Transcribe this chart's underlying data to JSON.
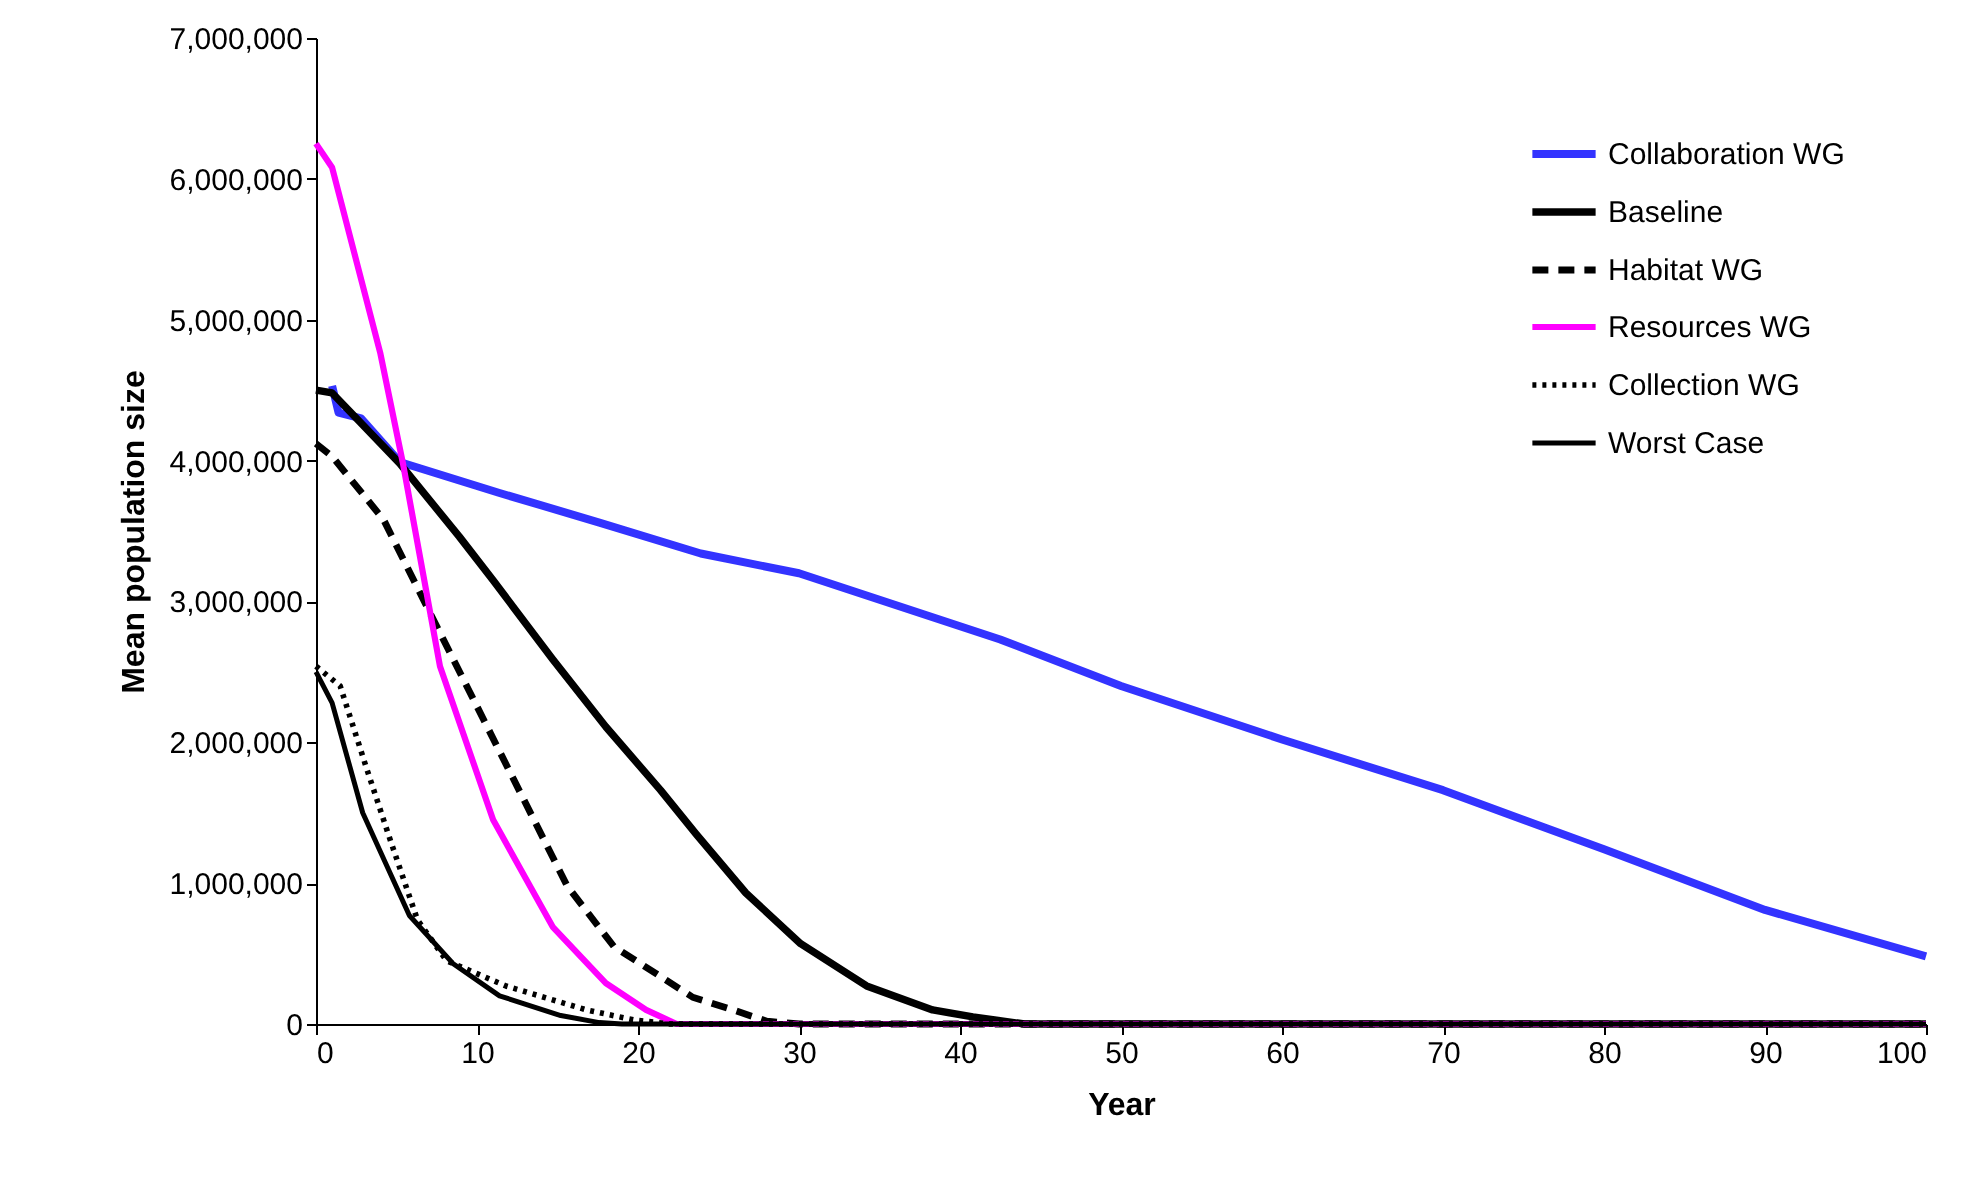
{
  "chart_data": {
    "type": "line",
    "xlabel": "Year",
    "ylabel": "Mean population size",
    "xlim": [
      0,
      100
    ],
    "xticks": [
      0,
      10,
      20,
      30,
      40,
      50,
      60,
      70,
      80,
      90,
      100
    ],
    "ylim": [
      0,
      7000000
    ],
    "yticks": [
      0,
      {
        "value": 1000000,
        "label": "1,000,000"
      },
      {
        "value": 2000000,
        "label": "2,000,000"
      },
      {
        "value": 3000000,
        "label": "3,000,000"
      },
      {
        "value": 4000000,
        "label": "4,000,000"
      },
      {
        "value": 5000000,
        "label": "5,000,000"
      },
      {
        "value": 6000000,
        "label": "6,000,000"
      },
      {
        "value": 7000000,
        "label": "7,000,000"
      }
    ],
    "grid": false,
    "legend": "top right",
    "marker": "none",
    "series": [
      {
        "name": "Collaboration WG",
        "color": "#3333ff",
        "line_style": "solid",
        "x": [
          1,
          1.4,
          2.8,
          5.2,
          11.4,
          17.6,
          23.9,
          30,
          42.5,
          50,
          60,
          70,
          80,
          90,
          100
        ],
        "values": [
          4530000,
          4340000,
          4300000,
          3990000,
          3770000,
          3560000,
          3340000,
          3200000,
          2730000,
          2400000,
          2020000,
          1660000,
          1240000,
          810000,
          480000
        ]
      },
      {
        "name": "Baseline",
        "color": "#000000",
        "line_style": "solid",
        "x": [
          0,
          1,
          5.2,
          8.9,
          11,
          14.7,
          18,
          21.4,
          23.6,
          26.7,
          30.1,
          34.2,
          38.3,
          40.8,
          44,
          100
        ],
        "values": [
          4500000,
          4480000,
          3980000,
          3460000,
          3150000,
          2590000,
          2110000,
          1660000,
          1350000,
          930000,
          570000,
          270000,
          100000,
          50000,
          0,
          0
        ]
      },
      {
        "name": "Habitat WG",
        "color": "#000000",
        "line_style": "dashed",
        "x": [
          0,
          1,
          4.2,
          6.9,
          9.8,
          12.7,
          15.6,
          18.5,
          23.4,
          25.9,
          28,
          30,
          100
        ],
        "values": [
          4120000,
          4030000,
          3580000,
          2960000,
          2300000,
          1640000,
          980000,
          550000,
          190000,
          100000,
          20000,
          0,
          0
        ]
      },
      {
        "name": "Resources WG",
        "color": "#ff00ff",
        "line_style": "solid",
        "x": [
          0,
          1,
          4,
          5.4,
          7.7,
          11,
          14.7,
          18,
          20.5,
          22.4,
          100
        ],
        "values": [
          6250000,
          6080000,
          4760000,
          3980000,
          2540000,
          1450000,
          690000,
          290000,
          100000,
          0,
          0
        ]
      },
      {
        "name": "Collection WG",
        "color": "#000000",
        "line_style": "dotted",
        "x": [
          0,
          1.5,
          3.1,
          4.6,
          6.3,
          8.1,
          11.8,
          16.8,
          19.7,
          22,
          100
        ],
        "values": [
          2540000,
          2400000,
          1830000,
          1310000,
          740000,
          450000,
          270000,
          100000,
          30000,
          0,
          0
        ]
      },
      {
        "name": "Worst Case",
        "color": "#000000",
        "line_style": "solid",
        "x": [
          0,
          1,
          2.9,
          5.8,
          8.5,
          11.4,
          15.2,
          17.6,
          19,
          100
        ],
        "values": [
          2500000,
          2280000,
          1500000,
          770000,
          430000,
          200000,
          60000,
          10000,
          0,
          0
        ]
      }
    ]
  }
}
